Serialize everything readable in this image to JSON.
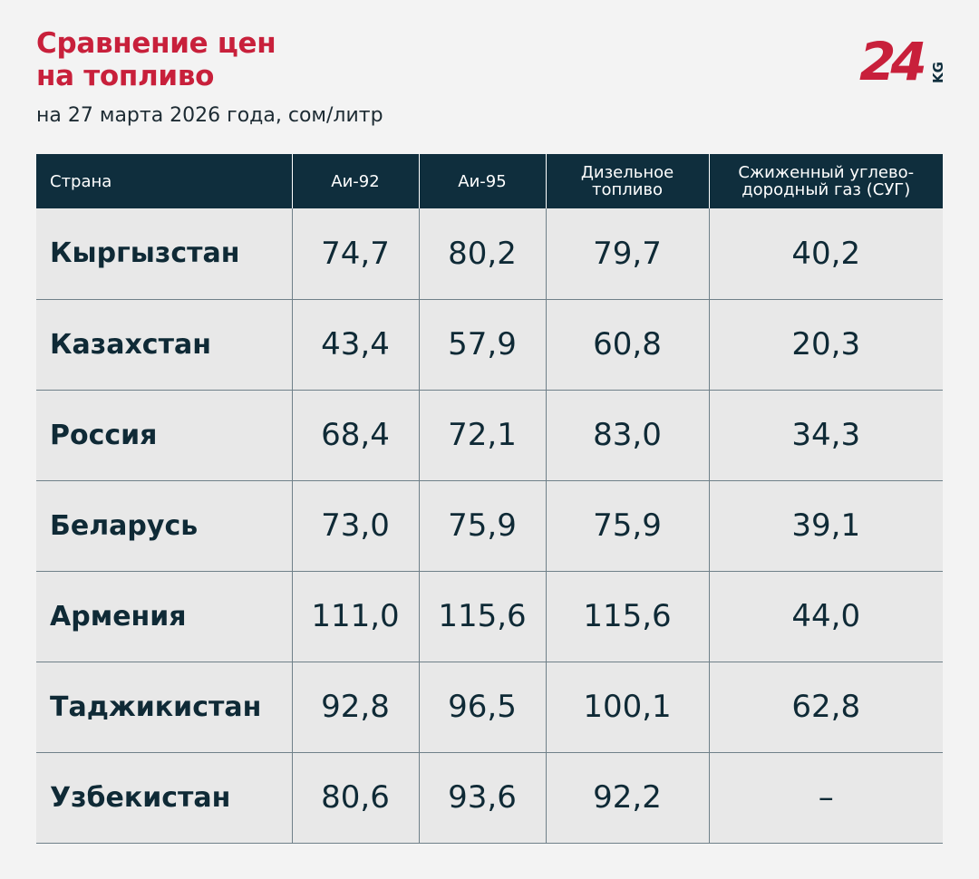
{
  "header": {
    "title_line1": "Сравнение цен",
    "title_line2": "на топливо",
    "subtitle": "на 27 марта 2026 года, сом/литр",
    "logo": {
      "number": "24",
      "suffix": "KG",
      "color": "#c8203b",
      "suffix_color": "#0f2e3d"
    }
  },
  "colors": {
    "title": "#c8203b",
    "header_bg": "#0f2e3d",
    "row_bg": "#e8e8e8",
    "text": "#0f2a36",
    "page_bg": "#f3f3f3"
  },
  "table": {
    "columns": [
      "Страна",
      "Аи-92",
      "Аи-95",
      "Дизельное топливо",
      "Сжиженный углево-дородный газ (СУГ)"
    ],
    "rows": [
      {
        "country": "Кыргызстан",
        "ai92": "74,7",
        "ai95": "80,2",
        "diesel": "79,7",
        "lpg": "40,2"
      },
      {
        "country": "Казахстан",
        "ai92": "43,4",
        "ai95": "57,9",
        "diesel": "60,8",
        "lpg": "20,3"
      },
      {
        "country": "Россия",
        "ai92": "68,4",
        "ai95": "72,1",
        "diesel": "83,0",
        "lpg": "34,3"
      },
      {
        "country": "Беларусь",
        "ai92": "73,0",
        "ai95": "75,9",
        "diesel": "75,9",
        "lpg": "39,1"
      },
      {
        "country": "Армения",
        "ai92": "111,0",
        "ai95": "115,6",
        "diesel": "115,6",
        "lpg": "44,0"
      },
      {
        "country": "Таджикистан",
        "ai92": "92,8",
        "ai95": "96,5",
        "diesel": "100,1",
        "lpg": "62,8"
      },
      {
        "country": "Узбекистан",
        "ai92": "80,6",
        "ai95": "93,6",
        "diesel": "92,2",
        "lpg": "–"
      }
    ]
  }
}
